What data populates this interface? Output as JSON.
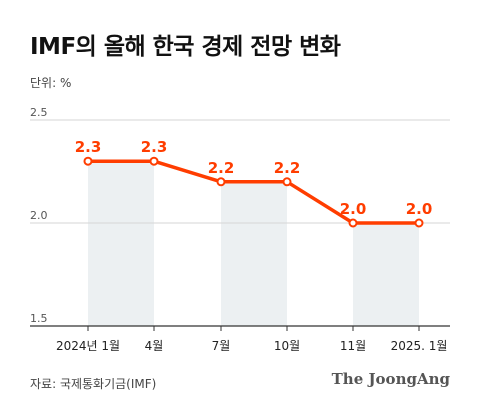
{
  "header": {
    "title": "IMF의 올해 한국 경제 전망 변화",
    "unit": "단위: %"
  },
  "footer": {
    "source": "자료: 국제통화기금(IMF)",
    "brand": "The JoongAng"
  },
  "colors": {
    "line": "#ff3d00",
    "label": "#ff3d00",
    "bar": "#ecf0f2",
    "grid": "#d6d6d6",
    "axis": "#333333"
  },
  "chart_data": {
    "type": "line",
    "title": "IMF의 올해 한국 경제 전망 변화",
    "ylabel": "단위: %",
    "x": [
      "2024년 1월",
      "4월",
      "7월",
      "10월",
      "11월",
      "2025. 1월"
    ],
    "values": [
      2.3,
      2.3,
      2.2,
      2.2,
      2.0,
      2.0
    ],
    "data_labels": [
      "2.3",
      "2.3",
      "2.2",
      "2.2",
      "2.0",
      "2.0"
    ],
    "ylim": [
      1.5,
      2.5
    ],
    "yticks": [
      "2.5",
      "2.0",
      "1.5"
    ],
    "grid": true,
    "shaded_bars": [
      [
        0,
        1
      ],
      [
        2,
        3
      ],
      [
        4,
        5
      ]
    ]
  }
}
